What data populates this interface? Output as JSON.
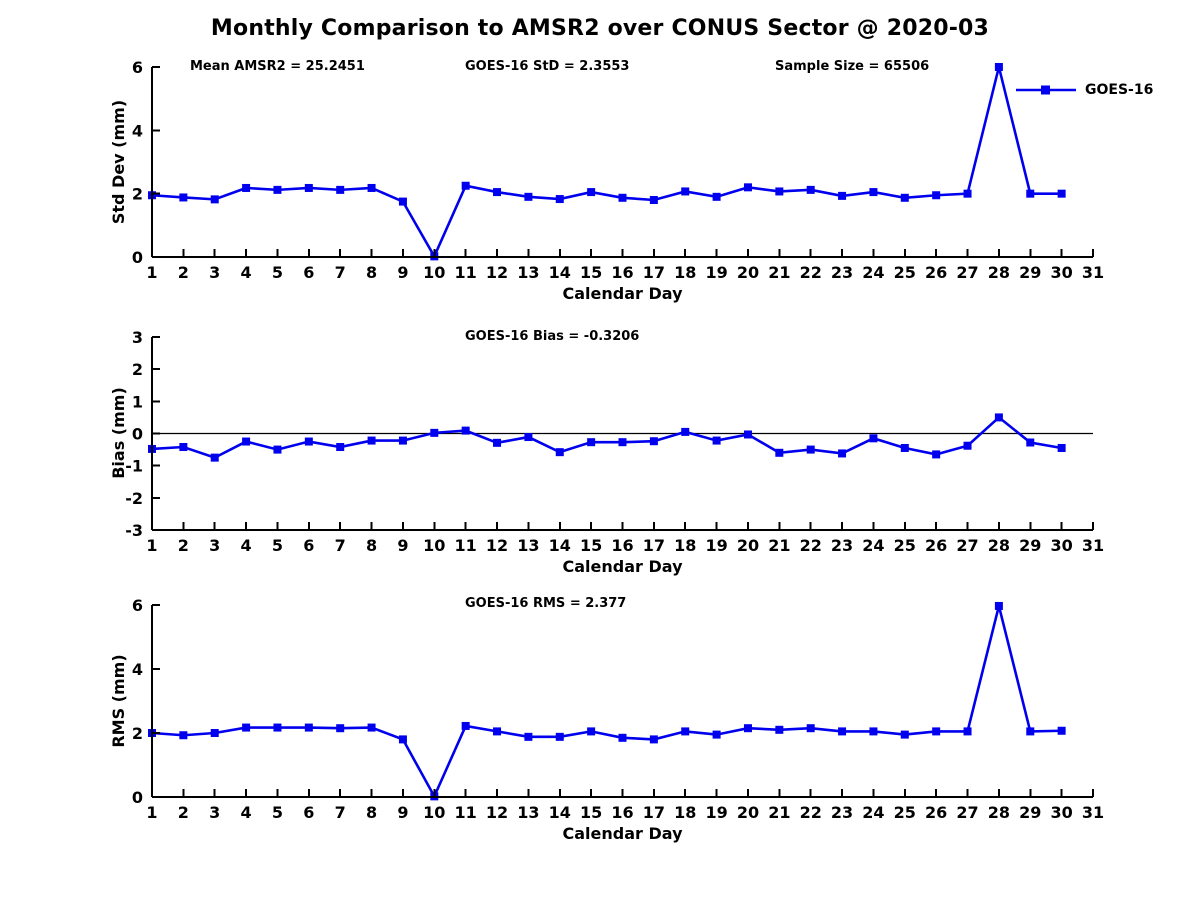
{
  "figure": {
    "title": "Monthly Comparison to AMSR2 over CONUS Sector @ 2020-03"
  },
  "legend": {
    "label": "GOES-16"
  },
  "colors": {
    "series": "#0000EE",
    "axis": "#000000",
    "background": "#FFFFFF"
  },
  "chart_data": [
    {
      "type": "line",
      "name": "std-dev",
      "ylabel": "Std Dev (mm)",
      "xlabel": "Calendar Day",
      "ylim": [
        0,
        6
      ],
      "yticks": [
        0,
        2,
        4,
        6
      ],
      "xlim": [
        1,
        31
      ],
      "xticks": [
        1,
        2,
        3,
        4,
        5,
        6,
        7,
        8,
        9,
        10,
        11,
        12,
        13,
        14,
        15,
        16,
        17,
        18,
        19,
        20,
        21,
        22,
        23,
        24,
        25,
        26,
        27,
        28,
        29,
        30,
        31
      ],
      "grid": false,
      "legend_position": "top-right",
      "annotations": [
        {
          "text": "Mean AMSR2 = 25.2451"
        },
        {
          "text": "GOES-16 StD = 2.3553"
        },
        {
          "text": "Sample Size = 65506"
        }
      ],
      "series": [
        {
          "name": "GOES-16",
          "color": "#0000EE",
          "marker": "square",
          "x": [
            1,
            2,
            3,
            4,
            5,
            6,
            7,
            8,
            9,
            10,
            11,
            12,
            13,
            14,
            15,
            16,
            17,
            18,
            19,
            20,
            21,
            22,
            23,
            24,
            25,
            26,
            27,
            28,
            29,
            30
          ],
          "values": [
            1.95,
            1.88,
            1.82,
            2.18,
            2.12,
            2.18,
            2.12,
            2.18,
            1.75,
            0.02,
            2.25,
            2.05,
            1.9,
            1.83,
            2.05,
            1.87,
            1.8,
            2.07,
            1.9,
            2.2,
            2.07,
            2.12,
            1.93,
            2.05,
            1.87,
            1.95,
            2.0,
            6.0,
            2.0,
            2.0
          ]
        }
      ]
    },
    {
      "type": "line",
      "name": "bias",
      "ylabel": "Bias (mm)",
      "xlabel": "Calendar Day",
      "ylim": [
        -3,
        3
      ],
      "yticks": [
        -3,
        -2,
        -1,
        0,
        1,
        2,
        3
      ],
      "xlim": [
        1,
        31
      ],
      "xticks": [
        1,
        2,
        3,
        4,
        5,
        6,
        7,
        8,
        9,
        10,
        11,
        12,
        13,
        14,
        15,
        16,
        17,
        18,
        19,
        20,
        21,
        22,
        23,
        24,
        25,
        26,
        27,
        28,
        29,
        30,
        31
      ],
      "grid": false,
      "zero_line": true,
      "annotations": [
        {
          "text": "GOES-16 Bias = -0.3206"
        }
      ],
      "series": [
        {
          "name": "GOES-16",
          "color": "#0000EE",
          "marker": "square",
          "x": [
            1,
            2,
            3,
            4,
            5,
            6,
            7,
            8,
            9,
            10,
            11,
            12,
            13,
            14,
            15,
            16,
            17,
            18,
            19,
            20,
            21,
            22,
            23,
            24,
            25,
            26,
            27,
            28,
            29,
            30
          ],
          "values": [
            -0.48,
            -0.42,
            -0.75,
            -0.25,
            -0.5,
            -0.25,
            -0.42,
            -0.22,
            -0.22,
            0.02,
            0.09,
            -0.29,
            -0.11,
            -0.58,
            -0.27,
            -0.27,
            -0.24,
            0.05,
            -0.22,
            -0.03,
            -0.6,
            -0.5,
            -0.62,
            -0.15,
            -0.45,
            -0.65,
            -0.38,
            0.5,
            -0.28,
            -0.45
          ]
        }
      ]
    },
    {
      "type": "line",
      "name": "rms",
      "ylabel": "RMS (mm)",
      "xlabel": "Calendar Day",
      "ylim": [
        0,
        6
      ],
      "yticks": [
        0,
        2,
        4,
        6
      ],
      "xlim": [
        1,
        31
      ],
      "xticks": [
        1,
        2,
        3,
        4,
        5,
        6,
        7,
        8,
        9,
        10,
        11,
        12,
        13,
        14,
        15,
        16,
        17,
        18,
        19,
        20,
        21,
        22,
        23,
        24,
        25,
        26,
        27,
        28,
        29,
        30,
        31
      ],
      "grid": false,
      "annotations": [
        {
          "text": "GOES-16 RMS = 2.377"
        }
      ],
      "series": [
        {
          "name": "GOES-16",
          "color": "#0000EE",
          "marker": "square",
          "x": [
            1,
            2,
            3,
            4,
            5,
            6,
            7,
            8,
            9,
            10,
            11,
            12,
            13,
            14,
            15,
            16,
            17,
            18,
            19,
            20,
            21,
            22,
            23,
            24,
            25,
            26,
            27,
            28,
            29,
            30
          ],
          "values": [
            2.0,
            1.93,
            2.0,
            2.17,
            2.17,
            2.17,
            2.15,
            2.17,
            1.8,
            0.02,
            2.22,
            2.05,
            1.88,
            1.88,
            2.05,
            1.85,
            1.8,
            2.05,
            1.95,
            2.15,
            2.1,
            2.15,
            2.05,
            2.05,
            1.95,
            2.05,
            2.05,
            5.97,
            2.05,
            2.07
          ]
        }
      ]
    }
  ]
}
